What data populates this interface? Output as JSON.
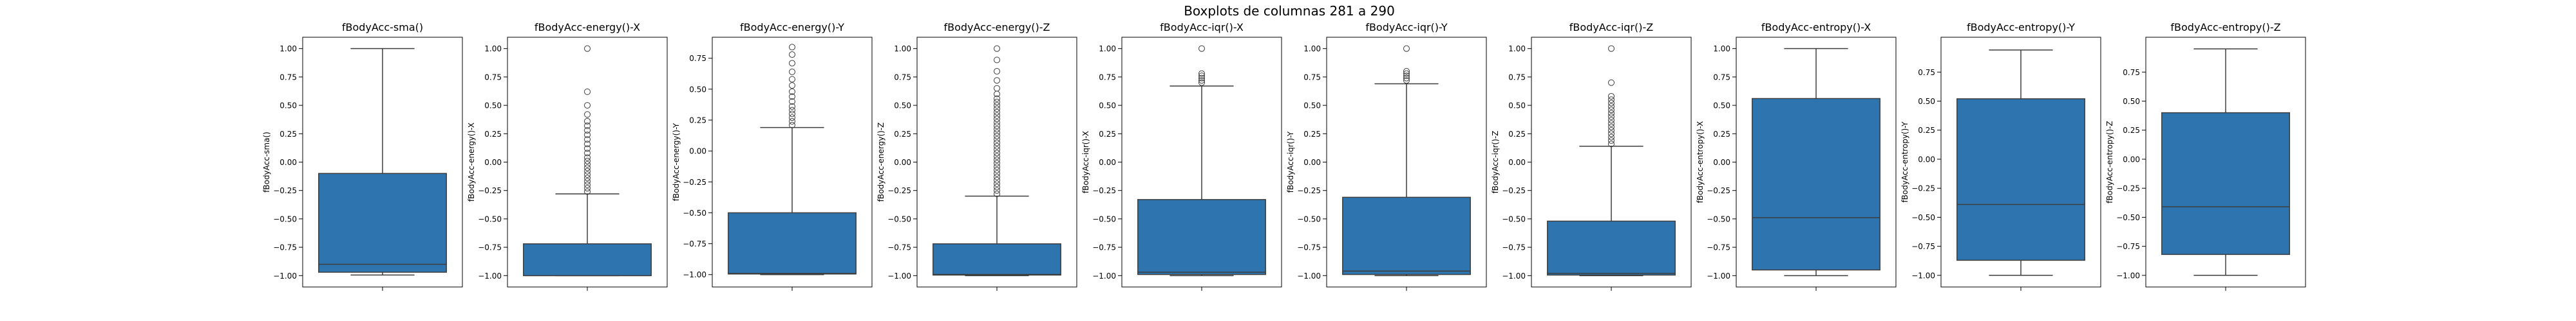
{
  "figure": {
    "suptitle": "Boxplots de columnas 281 a 290"
  },
  "colors": {
    "box_fill": "#2e75b0",
    "outline": "#3d3d3d",
    "axes_edge": "#000000",
    "background": "#ffffff"
  },
  "chart_data": [
    {
      "type": "boxplot",
      "title": "fBodyAcc-sma()",
      "ylabel": "fBodyAcc-sma()",
      "xlabel": "",
      "ylim": [
        -1.1,
        1.1
      ],
      "yticks": [
        -1.0,
        -0.75,
        -0.5,
        -0.25,
        0.0,
        0.25,
        0.5,
        0.75,
        1.0
      ],
      "ytick_labels": [
        "−1.00",
        "−0.75",
        "−0.50",
        "−0.25",
        "0.00",
        "0.25",
        "0.50",
        "0.75",
        "1.00"
      ],
      "whislo": -0.995,
      "q1": -0.97,
      "median": -0.9,
      "q3": -0.1,
      "whishi": 1.0,
      "fliers": []
    },
    {
      "type": "boxplot",
      "title": "fBodyAcc-energy()-X",
      "ylabel": "fBodyAcc-energy()-X",
      "xlabel": "",
      "ylim": [
        -1.1,
        1.1
      ],
      "yticks": [
        -1.0,
        -0.75,
        -0.5,
        -0.25,
        0.0,
        0.25,
        0.5,
        0.75,
        1.0
      ],
      "ytick_labels": [
        "−1.00",
        "−0.75",
        "−0.50",
        "−0.25",
        "0.00",
        "0.25",
        "0.50",
        "0.75",
        "1.00"
      ],
      "whislo": -1.0,
      "q1": -1.0,
      "median": -1.0,
      "q3": -0.72,
      "whishi": -0.28,
      "fliers": [
        -0.26,
        -0.23,
        -0.2,
        -0.17,
        -0.14,
        -0.11,
        -0.08,
        -0.05,
        -0.02,
        0.01,
        0.04,
        0.08,
        0.12,
        0.16,
        0.2,
        0.24,
        0.28,
        0.32,
        0.36,
        0.42,
        0.5,
        0.62,
        1.0
      ]
    },
    {
      "type": "boxplot",
      "title": "fBodyAcc-energy()-Y",
      "ylabel": "fBodyAcc-energy()-Y",
      "xlabel": "",
      "ylim": [
        -1.1,
        0.92
      ],
      "yticks": [
        -1.0,
        -0.75,
        -0.5,
        -0.25,
        0.0,
        0.25,
        0.5,
        0.75
      ],
      "ytick_labels": [
        "−1.00",
        "−0.75",
        "−0.50",
        "−0.25",
        "0.00",
        "0.25",
        "0.50",
        "0.75"
      ],
      "whislo": -1.0,
      "q1": -0.995,
      "median": -0.99,
      "q3": -0.5,
      "whishi": 0.19,
      "fliers": [
        0.21,
        0.24,
        0.27,
        0.3,
        0.33,
        0.36,
        0.4,
        0.44,
        0.48,
        0.53,
        0.58,
        0.64,
        0.71,
        0.78,
        0.84
      ]
    },
    {
      "type": "boxplot",
      "title": "fBodyAcc-energy()-Z",
      "ylabel": "fBodyAcc-energy()-Z",
      "xlabel": "",
      "ylim": [
        -1.1,
        1.1
      ],
      "yticks": [
        -1.0,
        -0.75,
        -0.5,
        -0.25,
        0.0,
        0.25,
        0.5,
        0.75,
        1.0
      ],
      "ytick_labels": [
        "−1.00",
        "−0.75",
        "−0.50",
        "−0.25",
        "0.00",
        "0.25",
        "0.50",
        "0.75",
        "1.00"
      ],
      "whislo": -1.0,
      "q1": -0.995,
      "median": -0.99,
      "q3": -0.72,
      "whishi": -0.3,
      "fliers": [
        -0.28,
        -0.25,
        -0.22,
        -0.19,
        -0.16,
        -0.13,
        -0.1,
        -0.07,
        -0.04,
        -0.01,
        0.02,
        0.05,
        0.08,
        0.11,
        0.14,
        0.17,
        0.2,
        0.23,
        0.26,
        0.29,
        0.32,
        0.35,
        0.38,
        0.41,
        0.44,
        0.47,
        0.5,
        0.53,
        0.56,
        0.6,
        0.65,
        0.72,
        0.8,
        0.9,
        1.0
      ]
    },
    {
      "type": "boxplot",
      "title": "fBodyAcc-iqr()-X",
      "ylabel": "fBodyAcc-iqr()-X",
      "xlabel": "",
      "ylim": [
        -1.1,
        1.1
      ],
      "yticks": [
        -1.0,
        -0.75,
        -0.5,
        -0.25,
        0.0,
        0.25,
        0.5,
        0.75,
        1.0
      ],
      "ytick_labels": [
        "−1.00",
        "−0.75",
        "−0.50",
        "−0.25",
        "0.00",
        "0.25",
        "0.50",
        "0.75",
        "1.00"
      ],
      "whislo": -1.0,
      "q1": -0.99,
      "median": -0.97,
      "q3": -0.33,
      "whishi": 0.67,
      "fliers": [
        0.7,
        0.72,
        0.74,
        0.76,
        0.78,
        1.0
      ]
    },
    {
      "type": "boxplot",
      "title": "fBodyAcc-iqr()-Y",
      "ylabel": "fBodyAcc-iqr()-Y",
      "xlabel": "",
      "ylim": [
        -1.1,
        1.1
      ],
      "yticks": [
        -1.0,
        -0.75,
        -0.5,
        -0.25,
        0.0,
        0.25,
        0.5,
        0.75,
        1.0
      ],
      "ytick_labels": [
        "−1.00",
        "−0.75",
        "−0.50",
        "−0.25",
        "0.00",
        "0.25",
        "0.50",
        "0.75",
        "1.00"
      ],
      "whislo": -1.0,
      "q1": -0.99,
      "median": -0.96,
      "q3": -0.31,
      "whishi": 0.69,
      "fliers": [
        0.72,
        0.74,
        0.76,
        0.78,
        0.8,
        1.0
      ]
    },
    {
      "type": "boxplot",
      "title": "fBodyAcc-iqr()-Z",
      "ylabel": "fBodyAcc-iqr()-Z",
      "xlabel": "",
      "ylim": [
        -1.1,
        1.1
      ],
      "yticks": [
        -1.0,
        -0.75,
        -0.5,
        -0.25,
        0.0,
        0.25,
        0.5,
        0.75,
        1.0
      ],
      "ytick_labels": [
        "−1.00",
        "−0.75",
        "−0.50",
        "−0.25",
        "0.00",
        "0.25",
        "0.50",
        "0.75",
        "1.00"
      ],
      "whislo": -1.0,
      "q1": -0.995,
      "median": -0.98,
      "q3": -0.52,
      "whishi": 0.14,
      "fliers": [
        0.16,
        0.19,
        0.22,
        0.25,
        0.28,
        0.31,
        0.34,
        0.37,
        0.4,
        0.43,
        0.46,
        0.49,
        0.52,
        0.55,
        0.58,
        0.7,
        1.0
      ]
    },
    {
      "type": "boxplot",
      "title": "fBodyAcc-entropy()-X",
      "ylabel": "fBodyAcc-entropy()-X",
      "xlabel": "",
      "ylim": [
        -1.1,
        1.1
      ],
      "yticks": [
        -1.0,
        -0.75,
        -0.5,
        -0.25,
        0.0,
        0.25,
        0.5,
        0.75,
        1.0
      ],
      "ytick_labels": [
        "−1.00",
        "−0.75",
        "−0.50",
        "−0.25",
        "0.00",
        "0.25",
        "0.50",
        "0.75",
        "1.00"
      ],
      "whislo": -1.0,
      "q1": -0.95,
      "median": -0.49,
      "q3": 0.56,
      "whishi": 1.0,
      "fliers": []
    },
    {
      "type": "boxplot",
      "title": "fBodyAcc-entropy()-Y",
      "ylabel": "fBodyAcc-entropy()-Y",
      "xlabel": "",
      "ylim": [
        -1.1,
        1.05
      ],
      "yticks": [
        -1.0,
        -0.75,
        -0.5,
        -0.25,
        0.0,
        0.25,
        0.5,
        0.75
      ],
      "ytick_labels": [
        "−1.00",
        "−0.75",
        "−0.50",
        "−0.25",
        "0.00",
        "0.25",
        "0.50",
        "0.75"
      ],
      "whislo": -1.0,
      "q1": -0.87,
      "median": -0.39,
      "q3": 0.52,
      "whishi": 0.94,
      "fliers": []
    },
    {
      "type": "boxplot",
      "title": "fBodyAcc-entropy()-Z",
      "ylabel": "fBodyAcc-entropy()-Z",
      "xlabel": "",
      "ylim": [
        -1.1,
        1.05
      ],
      "yticks": [
        -1.0,
        -0.75,
        -0.5,
        -0.25,
        0.0,
        0.25,
        0.5,
        0.75
      ],
      "ytick_labels": [
        "−1.00",
        "−0.75",
        "−0.50",
        "−0.25",
        "0.00",
        "0.25",
        "0.50",
        "0.75"
      ],
      "whislo": -1.0,
      "q1": -0.82,
      "median": -0.41,
      "q3": 0.4,
      "whishi": 0.95,
      "fliers": []
    }
  ]
}
